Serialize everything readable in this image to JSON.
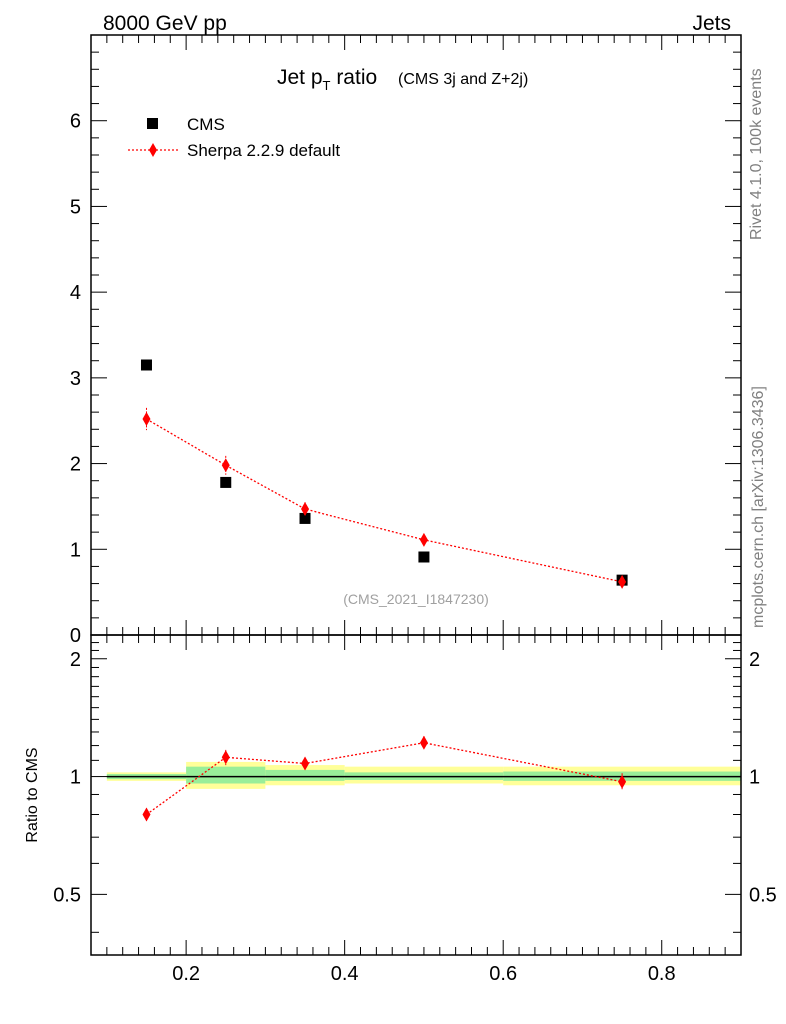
{
  "header": {
    "left": "8000 GeV pp",
    "right": "Jets",
    "side_top": "Rivet 4.1.0,  100k events",
    "side_bottom": "mcplots.cern.ch [arXiv:1306.3436]"
  },
  "chart_data": [
    {
      "type": "scatter",
      "title_main": "Jet p",
      "title_sub": "T",
      "title_rest": " ratio",
      "title_small": "(CMS 3j and Z+2j)",
      "watermark": "(CMS_2021_I1847230)",
      "xlim": [
        0.08,
        0.9
      ],
      "ylim": [
        0,
        7
      ],
      "y_ticks": [
        "0",
        "1",
        "2",
        "3",
        "4",
        "5",
        "6"
      ],
      "legend_position": "top-left",
      "series": [
        {
          "name": "CMS",
          "marker": "square",
          "color": "#000000",
          "x": [
            0.15,
            0.25,
            0.35,
            0.5,
            0.75
          ],
          "y": [
            3.15,
            1.78,
            1.36,
            0.91,
            0.64
          ]
        },
        {
          "name": "Sherpa 2.2.9 default",
          "marker": "diamond",
          "color": "#ff0000",
          "x": [
            0.15,
            0.25,
            0.35,
            0.5,
            0.75
          ],
          "y": [
            2.52,
            1.98,
            1.47,
            1.11,
            0.62
          ],
          "yerr": [
            0.13,
            0.11,
            0.08,
            0.06,
            0.04
          ]
        }
      ]
    },
    {
      "type": "scatter",
      "ylabel": "Ratio to CMS",
      "xlim": [
        0.08,
        0.9
      ],
      "ylim": [
        0.35,
        2.3
      ],
      "x_ticks": [
        "0.2",
        "0.4",
        "0.6",
        "0.8"
      ],
      "y_ticks": [
        "0.5",
        "1",
        "2"
      ],
      "reference_line": 1,
      "bands": [
        {
          "x0": 0.1,
          "x1": 0.2,
          "yellow": [
            0.975,
            1.025
          ],
          "green": [
            0.985,
            1.015
          ]
        },
        {
          "x0": 0.2,
          "x1": 0.3,
          "yellow": [
            0.93,
            1.09
          ],
          "green": [
            0.96,
            1.06
          ]
        },
        {
          "x0": 0.3,
          "x1": 0.4,
          "yellow": [
            0.95,
            1.07
          ],
          "green": [
            0.975,
            1.04
          ]
        },
        {
          "x0": 0.4,
          "x1": 0.6,
          "yellow": [
            0.96,
            1.06
          ],
          "green": [
            0.98,
            1.025
          ]
        },
        {
          "x0": 0.6,
          "x1": 0.9,
          "yellow": [
            0.95,
            1.06
          ],
          "green": [
            0.975,
            1.03
          ]
        }
      ],
      "series": [
        {
          "name": "Sherpa 2.2.9 default",
          "marker": "diamond",
          "color": "#ff0000",
          "x": [
            0.15,
            0.25,
            0.35,
            0.5,
            0.75
          ],
          "y": [
            0.8,
            1.12,
            1.08,
            1.22,
            0.97
          ],
          "yerr": [
            0.03,
            0.05,
            0.04,
            0.05,
            0.05
          ]
        }
      ]
    }
  ]
}
